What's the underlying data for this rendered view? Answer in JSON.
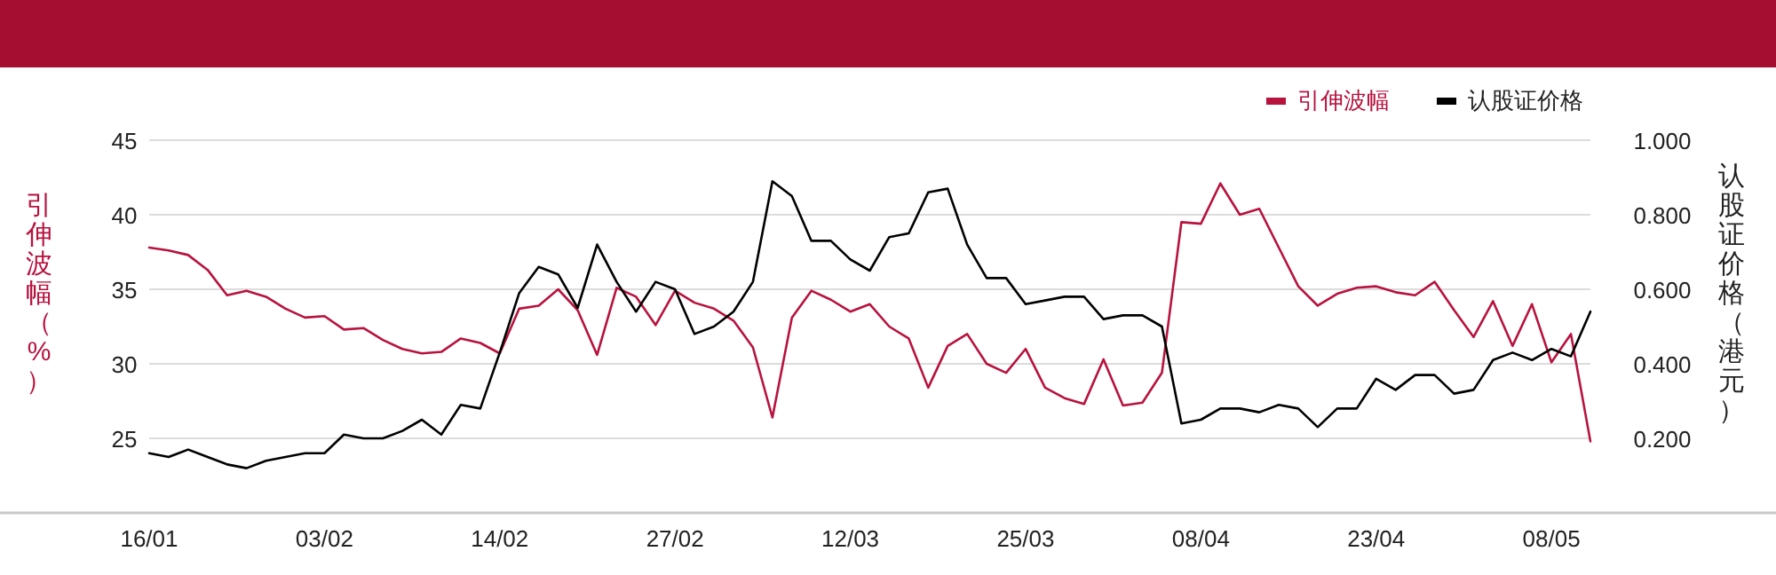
{
  "chart_data": {
    "type": "line",
    "categories": [
      "16/01",
      null,
      null,
      null,
      null,
      null,
      null,
      null,
      null,
      "03/02",
      null,
      null,
      null,
      null,
      null,
      null,
      null,
      null,
      "14/02",
      null,
      null,
      null,
      null,
      null,
      null,
      null,
      null,
      "27/02",
      null,
      null,
      null,
      null,
      null,
      null,
      null,
      null,
      "12/03",
      null,
      null,
      null,
      null,
      null,
      null,
      null,
      null,
      "25/03",
      null,
      null,
      null,
      null,
      null,
      null,
      null,
      null,
      "08/04",
      null,
      null,
      null,
      null,
      null,
      null,
      null,
      null,
      "23/04",
      null,
      null,
      null,
      null,
      null,
      null,
      null,
      null,
      "08/05",
      null,
      null
    ],
    "series": [
      {
        "name": "引伸波幅",
        "color": "#b8123e",
        "values": [
          37.8,
          37.6,
          37.3,
          36.3,
          34.6,
          34.9,
          34.5,
          33.7,
          33.1,
          33.2,
          32.3,
          32.4,
          31.6,
          31.0,
          30.7,
          30.8,
          31.7,
          31.4,
          30.7,
          33.7,
          33.9,
          35.0,
          33.6,
          30.6,
          35.1,
          34.5,
          32.6,
          34.9,
          34.1,
          33.7,
          32.9,
          31.1,
          26.4,
          33.1,
          34.9,
          34.3,
          33.5,
          34.0,
          32.5,
          31.7,
          28.4,
          31.2,
          32.0,
          30.0,
          29.4,
          31.0,
          28.4,
          27.7,
          27.3,
          30.3,
          27.2,
          27.4,
          29.4,
          39.5,
          39.4,
          42.1,
          40.0,
          40.4,
          37.8,
          35.2,
          33.9,
          34.7,
          35.1,
          35.2,
          34.8,
          34.6,
          35.5,
          33.6,
          31.8,
          34.2,
          31.2,
          34.0,
          30.1,
          32.0,
          24.8
        ]
      },
      {
        "name": "认股证价格",
        "color": "#000000",
        "axis": "y2",
        "values": [
          0.16,
          0.15,
          0.17,
          0.15,
          0.13,
          0.12,
          0.14,
          0.15,
          0.16,
          0.16,
          0.21,
          0.2,
          0.2,
          0.22,
          0.25,
          0.21,
          0.29,
          0.28,
          0.43,
          0.59,
          0.66,
          0.64,
          0.55,
          0.72,
          0.62,
          0.54,
          0.62,
          0.6,
          0.48,
          0.5,
          0.54,
          0.62,
          0.89,
          0.85,
          0.73,
          0.73,
          0.68,
          0.65,
          0.74,
          0.75,
          0.86,
          0.87,
          0.72,
          0.63,
          0.63,
          0.56,
          0.57,
          0.58,
          0.58,
          0.52,
          0.53,
          0.53,
          0.5,
          0.24,
          0.25,
          0.28,
          0.28,
          0.27,
          0.29,
          0.28,
          0.23,
          0.28,
          0.28,
          0.36,
          0.33,
          0.37,
          0.37,
          0.32,
          0.33,
          0.41,
          0.43,
          0.41,
          0.44,
          0.42,
          0.54
        ]
      }
    ],
    "ylabel": "引伸波幅（%）",
    "y2label": "认股证价格（港元）",
    "ylim": [
      20,
      45
    ],
    "yticks": [
      25,
      30,
      35,
      40,
      45
    ],
    "y2lim": [
      0,
      1
    ],
    "y2ticks": [
      {
        "value": 0.2,
        "label": "0.200"
      },
      {
        "value": 0.4,
        "label": "0.400"
      },
      {
        "value": 0.6,
        "label": "0.600"
      },
      {
        "value": 0.8,
        "label": "0.800"
      },
      {
        "value": 1,
        "label": "1.000"
      }
    ],
    "grid": "y",
    "legend": "top right",
    "marker": "none",
    "line_style": "solid"
  }
}
